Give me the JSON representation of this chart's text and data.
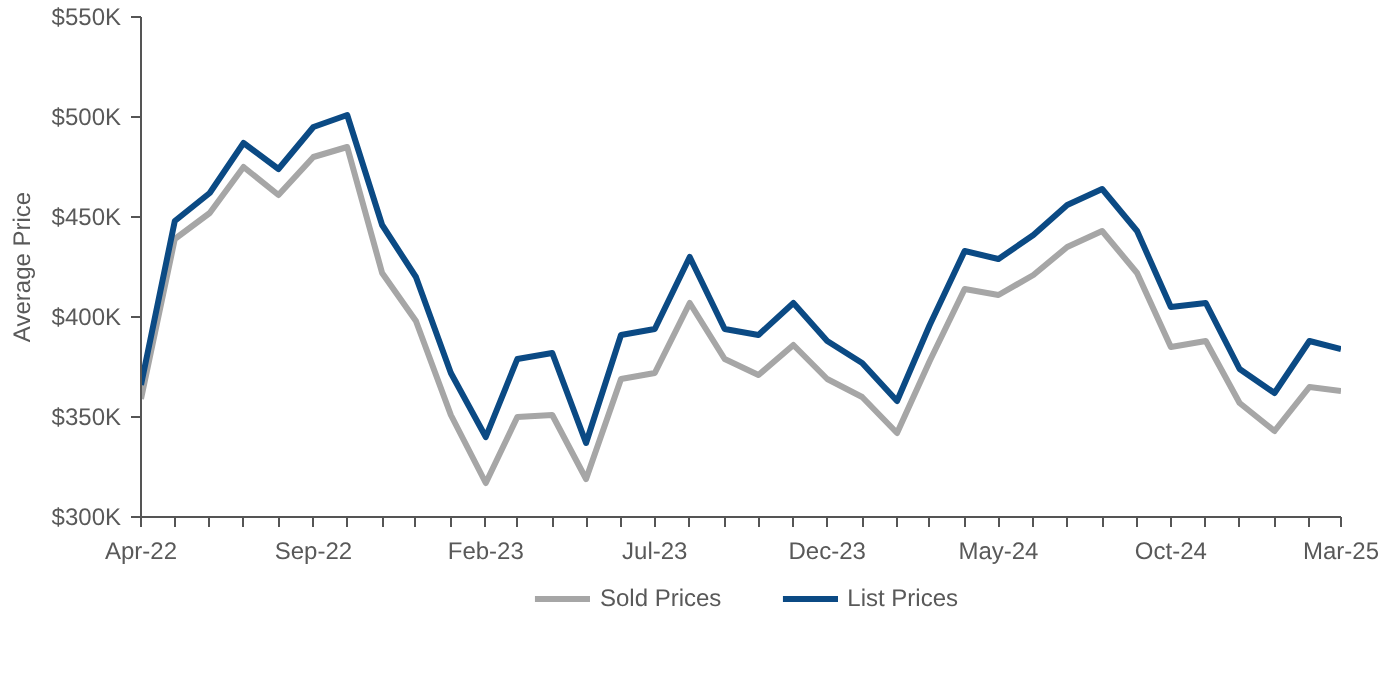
{
  "chart_data": {
    "type": "line",
    "ylabel": "Average Price",
    "x": [
      "2022-04",
      "2022-05",
      "2022-06",
      "2022-07",
      "2022-08",
      "2022-09",
      "2022-10",
      "2022-11",
      "2022-12",
      "2023-01",
      "2023-02",
      "2023-03",
      "2023-04",
      "2023-05",
      "2023-06",
      "2023-07",
      "2023-08",
      "2023-09",
      "2023-10",
      "2023-11",
      "2023-12",
      "2024-01",
      "2024-02",
      "2024-03",
      "2024-04",
      "2024-05",
      "2024-06",
      "2024-07",
      "2024-08",
      "2024-09",
      "2024-10",
      "2024-11",
      "2024-12",
      "2025-01",
      "2025-02",
      "2025-03"
    ],
    "series": [
      {
        "name": "Sold Prices",
        "color": "#a6a6a6",
        "values": [
          359,
          439,
          452,
          475,
          461,
          480,
          485,
          422,
          398,
          351,
          317,
          350,
          351,
          319,
          369,
          372,
          407,
          379,
          371,
          386,
          369,
          360,
          342,
          378,
          414,
          411,
          421,
          435,
          443,
          422,
          385,
          388,
          357,
          343,
          365,
          363
        ]
      },
      {
        "name": "List Prices",
        "color": "#0b4a84",
        "values": [
          366,
          448,
          462,
          487,
          474,
          495,
          501,
          446,
          420,
          372,
          340,
          379,
          382,
          337,
          391,
          394,
          430,
          394,
          391,
          407,
          388,
          377,
          358,
          396,
          433,
          429,
          441,
          456,
          464,
          443,
          405,
          407,
          374,
          362,
          388,
          384
        ]
      }
    ],
    "xlim": [
      "2022-04",
      "2025-03"
    ],
    "xticks": [
      {
        "value": "2022-04",
        "label": "Apr-22"
      },
      {
        "value": "2022-05",
        "label": null
      },
      {
        "value": "2022-06",
        "label": null
      },
      {
        "value": "2022-07",
        "label": null
      },
      {
        "value": "2022-08",
        "label": null
      },
      {
        "value": "2022-09",
        "label": "Sep-22"
      },
      {
        "value": "2022-10",
        "label": null
      },
      {
        "value": "2022-11",
        "label": null
      },
      {
        "value": "2022-12",
        "label": null
      },
      {
        "value": "2023-01",
        "label": null
      },
      {
        "value": "2023-02",
        "label": "Feb-23"
      },
      {
        "value": "2023-03",
        "label": null
      },
      {
        "value": "2023-04",
        "label": null
      },
      {
        "value": "2023-05",
        "label": null
      },
      {
        "value": "2023-06",
        "label": null
      },
      {
        "value": "2023-07",
        "label": "Jul-23"
      },
      {
        "value": "2023-08",
        "label": null
      },
      {
        "value": "2023-09",
        "label": null
      },
      {
        "value": "2023-10",
        "label": null
      },
      {
        "value": "2023-11",
        "label": null
      },
      {
        "value": "2023-12",
        "label": "Dec-23"
      },
      {
        "value": "2024-01",
        "label": null
      },
      {
        "value": "2024-02",
        "label": null
      },
      {
        "value": "2024-03",
        "label": null
      },
      {
        "value": "2024-04",
        "label": null
      },
      {
        "value": "2024-05",
        "label": "May-24"
      },
      {
        "value": "2024-06",
        "label": null
      },
      {
        "value": "2024-07",
        "label": null
      },
      {
        "value": "2024-08",
        "label": null
      },
      {
        "value": "2024-09",
        "label": null
      },
      {
        "value": "2024-10",
        "label": "Oct-24"
      },
      {
        "value": "2024-11",
        "label": null
      },
      {
        "value": "2024-12",
        "label": null
      },
      {
        "value": "2025-01",
        "label": null
      },
      {
        "value": "2025-02",
        "label": null
      },
      {
        "value": "2025-03",
        "label": "Mar-25"
      }
    ],
    "ylim": [
      300,
      550
    ],
    "yticks": [
      {
        "value": 300,
        "label": "$300K"
      },
      {
        "value": 350,
        "label": "$350K"
      },
      {
        "value": 400,
        "label": "$400K"
      },
      {
        "value": 450,
        "label": "$450K"
      },
      {
        "value": 500,
        "label": "$500K"
      },
      {
        "value": 550,
        "label": "$550K"
      }
    ],
    "grid": false,
    "legend": "bottom",
    "marker": "none",
    "line_style": "solid"
  }
}
